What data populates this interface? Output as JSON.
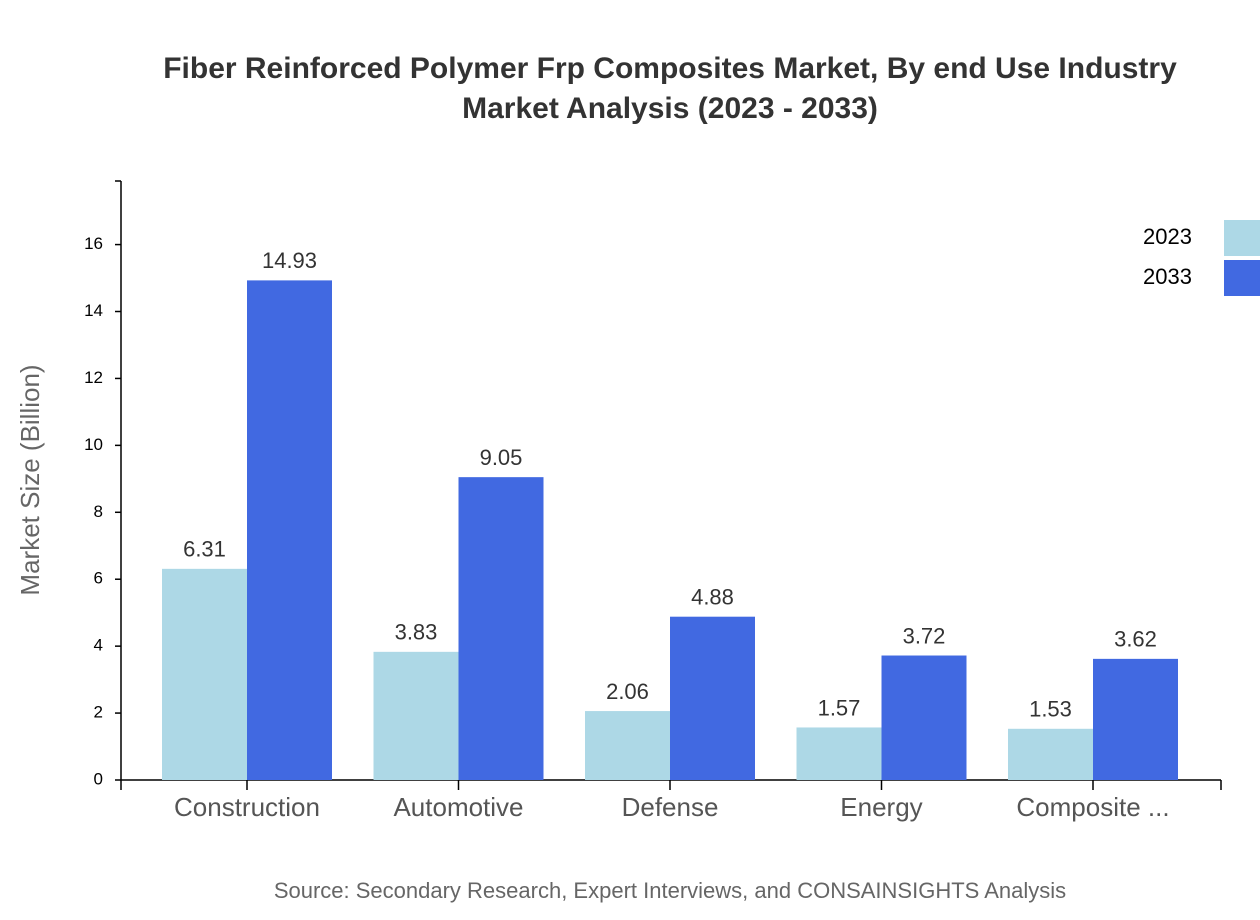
{
  "chart_data": {
    "type": "bar",
    "title": [
      "Fiber Reinforced Polymer Frp Composites Market, By end Use Industry",
      "Market Analysis (2023 - 2033)"
    ],
    "y_label": "Market Size (Billion)",
    "source": "Source: Secondary Research, Expert Interviews, and CONSAINSIGHTS Analysis",
    "categories": [
      "Construction",
      "Automotive",
      "Defense",
      "Energy",
      "Composite ..."
    ],
    "series": [
      {
        "name": "2023",
        "color": "#add8e6",
        "values": [
          6.31,
          3.83,
          2.06,
          1.57,
          1.53
        ]
      },
      {
        "name": "2033",
        "color": "#4169e1",
        "values": [
          14.93,
          9.05,
          4.88,
          3.72,
          3.62
        ]
      }
    ],
    "ylim": [
      0,
      17.9
    ],
    "yticks": [
      0,
      2,
      4,
      6,
      8,
      10,
      12,
      14,
      16
    ],
    "legend": "top-right"
  }
}
